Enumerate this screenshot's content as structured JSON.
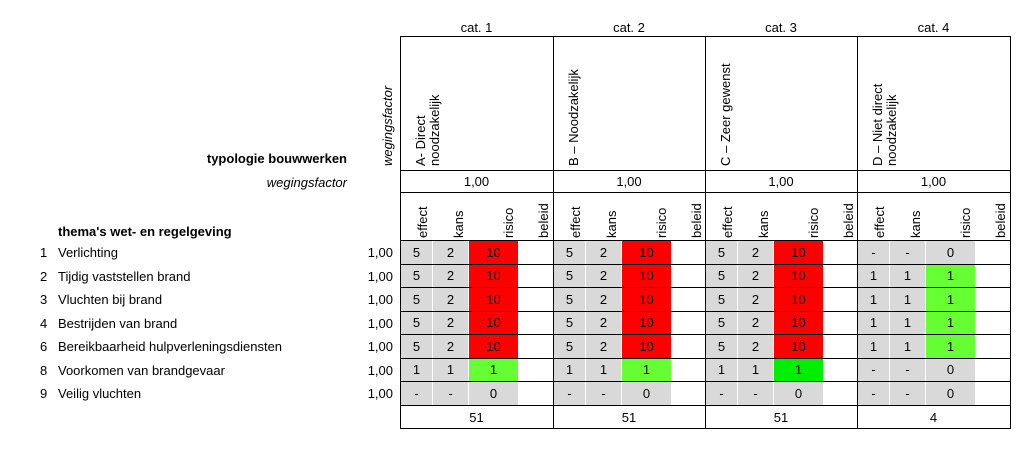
{
  "header": {
    "typologie": "typologie bouwwerken",
    "wegingsfactor_row": "wegingsfactor",
    "wegingsfactor_column": "wegingsfactor",
    "themas": "thema's wet- en regelgeving"
  },
  "subheaders": [
    "effect",
    "kans",
    "risico",
    "beleid"
  ],
  "themes": [
    {
      "nr": "1",
      "label": "Verlichting",
      "weight": "1,00"
    },
    {
      "nr": "2",
      "label": "Tijdig vaststellen brand",
      "weight": "1,00"
    },
    {
      "nr": "3",
      "label": "Vluchten bij brand",
      "weight": "1,00"
    },
    {
      "nr": "4",
      "label": "Bestrijden van brand",
      "weight": "1,00"
    },
    {
      "nr": "6",
      "label": "Bereikbaarheid hulpverleningsdiensten",
      "weight": "1,00"
    },
    {
      "nr": "8",
      "label": "Voorkomen van brandgevaar",
      "weight": "1,00"
    },
    {
      "nr": "9",
      "label": "Veilig vluchten",
      "weight": "1,00"
    }
  ],
  "categories": [
    {
      "name": "cat. 1",
      "type": [
        "A- Direct",
        "noodzakelijk"
      ],
      "weight": "1,00",
      "total": 51,
      "cells": [
        {
          "effect": 5,
          "kans": 2,
          "risico": 10,
          "color": "#ff0000"
        },
        {
          "effect": 5,
          "kans": 2,
          "risico": 10,
          "color": "#ff0000"
        },
        {
          "effect": 5,
          "kans": 2,
          "risico": 10,
          "color": "#ff0000"
        },
        {
          "effect": 5,
          "kans": 2,
          "risico": 10,
          "color": "#ff0000"
        },
        {
          "effect": 5,
          "kans": 2,
          "risico": 10,
          "color": "#ff0000"
        },
        {
          "effect": 1,
          "kans": 1,
          "risico": 1,
          "color": "#66ff33"
        },
        {
          "effect": "-",
          "kans": "-",
          "risico": 0,
          "color": "#d9d9d9"
        }
      ]
    },
    {
      "name": "cat. 2",
      "type": [
        "B – Noodzakelijk"
      ],
      "weight": "1,00",
      "total": 51,
      "cells": [
        {
          "effect": 5,
          "kans": 2,
          "risico": 10,
          "color": "#ff0000"
        },
        {
          "effect": 5,
          "kans": 2,
          "risico": 10,
          "color": "#ff0000"
        },
        {
          "effect": 5,
          "kans": 2,
          "risico": 10,
          "color": "#ff0000"
        },
        {
          "effect": 5,
          "kans": 2,
          "risico": 10,
          "color": "#ff0000"
        },
        {
          "effect": 5,
          "kans": 2,
          "risico": 10,
          "color": "#ff0000"
        },
        {
          "effect": 1,
          "kans": 1,
          "risico": 1,
          "color": "#66ff33"
        },
        {
          "effect": "-",
          "kans": "-",
          "risico": 0,
          "color": "#d9d9d9"
        }
      ]
    },
    {
      "name": "cat. 3",
      "type": [
        "C – Zeer gewenst"
      ],
      "weight": "1,00",
      "total": 51,
      "cells": [
        {
          "effect": 5,
          "kans": 2,
          "risico": 10,
          "color": "#ff0000"
        },
        {
          "effect": 5,
          "kans": 2,
          "risico": 10,
          "color": "#ff0000"
        },
        {
          "effect": 5,
          "kans": 2,
          "risico": 10,
          "color": "#ff0000"
        },
        {
          "effect": 5,
          "kans": 2,
          "risico": 10,
          "color": "#ff0000"
        },
        {
          "effect": 5,
          "kans": 2,
          "risico": 10,
          "color": "#ff0000"
        },
        {
          "effect": 1,
          "kans": 1,
          "risico": 1,
          "color": "#00ee00"
        },
        {
          "effect": "-",
          "kans": "-",
          "risico": 0,
          "color": "#d9d9d9"
        }
      ]
    },
    {
      "name": "cat. 4",
      "type": [
        "D – Niet direct",
        "noodzakelijk"
      ],
      "weight": "1,00",
      "total": 4,
      "cells": [
        {
          "effect": "-",
          "kans": "-",
          "risico": 0,
          "color": "#d9d9d9"
        },
        {
          "effect": 1,
          "kans": 1,
          "risico": 1,
          "color": "#66ff33"
        },
        {
          "effect": 1,
          "kans": 1,
          "risico": 1,
          "color": "#66ff33"
        },
        {
          "effect": 1,
          "kans": 1,
          "risico": 1,
          "color": "#66ff33"
        },
        {
          "effect": 1,
          "kans": 1,
          "risico": 1,
          "color": "#66ff33"
        },
        {
          "effect": "-",
          "kans": "-",
          "risico": 0,
          "color": "#d9d9d9"
        },
        {
          "effect": "-",
          "kans": "-",
          "risico": 0,
          "color": "#d9d9d9"
        }
      ]
    }
  ]
}
